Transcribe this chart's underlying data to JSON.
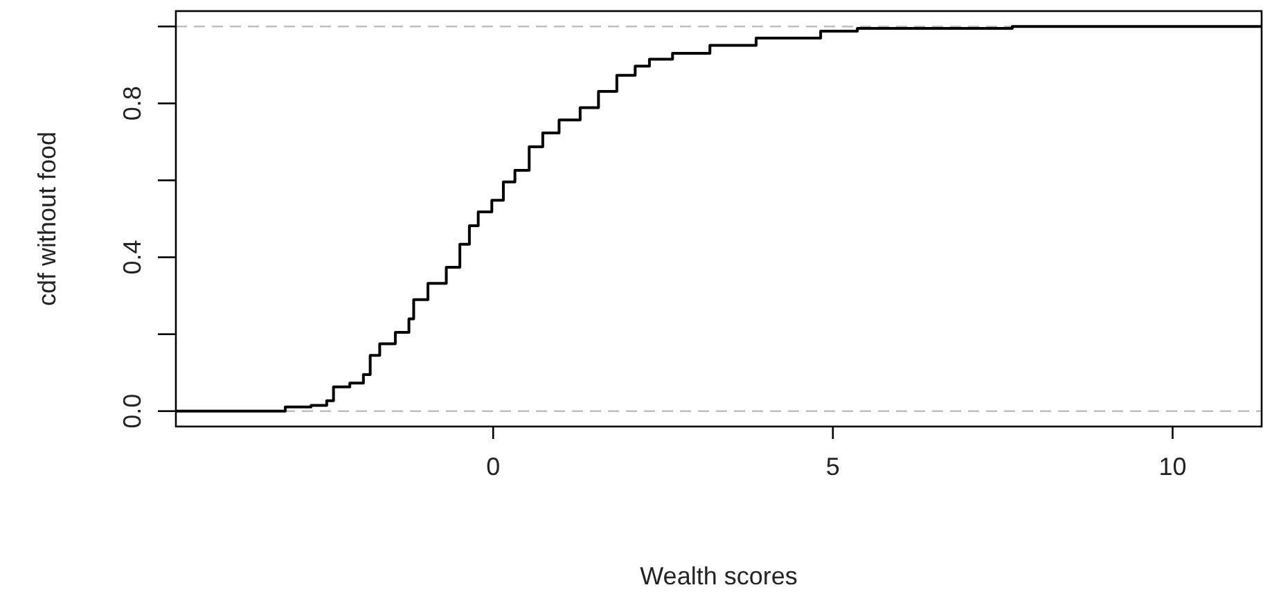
{
  "chart_data": {
    "type": "step",
    "xlabel": "Wealth scores",
    "ylabel": "cdf without food",
    "xlim": [
      -4.67,
      11.31
    ],
    "ylim": [
      -0.04,
      1.04
    ],
    "xticks": [
      0,
      5,
      10
    ],
    "yticks": [
      {
        "value": 0,
        "label": "0.0"
      },
      {
        "value": 0.2,
        "label": null
      },
      {
        "value": 0.4,
        "label": "0.4"
      },
      {
        "value": 0.6,
        "label": null
      },
      {
        "value": 0.8,
        "label": "0.8"
      },
      {
        "value": 1,
        "label": null
      }
    ],
    "ref_lines": [
      {
        "axis": "y",
        "value": 0,
        "color": "#bebebe",
        "line_style": "dashed"
      },
      {
        "axis": "y",
        "value": 1,
        "color": "#bebebe",
        "line_style": "dashed"
      }
    ],
    "series": [
      {
        "color": "#000000",
        "x": [
          -4.67,
          -3.06,
          -2.68,
          -2.45,
          -2.35,
          -2.11,
          -1.91,
          -1.81,
          -1.67,
          -1.44,
          -1.24,
          -1.17,
          -0.96,
          -0.69,
          -0.49,
          -0.35,
          -0.22,
          -0.02,
          0.15,
          0.32,
          0.53,
          0.73,
          0.97,
          1.28,
          1.55,
          1.82,
          2.09,
          2.3,
          2.64,
          3.19,
          3.87,
          4.82,
          5.36,
          7.64,
          11.31
        ],
        "values": [
          0,
          0.011,
          0.015,
          0.027,
          0.063,
          0.073,
          0.095,
          0.145,
          0.175,
          0.205,
          0.24,
          0.29,
          0.332,
          0.374,
          0.434,
          0.482,
          0.518,
          0.548,
          0.596,
          0.626,
          0.687,
          0.723,
          0.757,
          0.789,
          0.831,
          0.873,
          0.897,
          0.915,
          0.93,
          0.951,
          0.97,
          0.988,
          0.995,
          1,
          1
        ]
      }
    ],
    "grid": false,
    "line_style": "solid"
  }
}
